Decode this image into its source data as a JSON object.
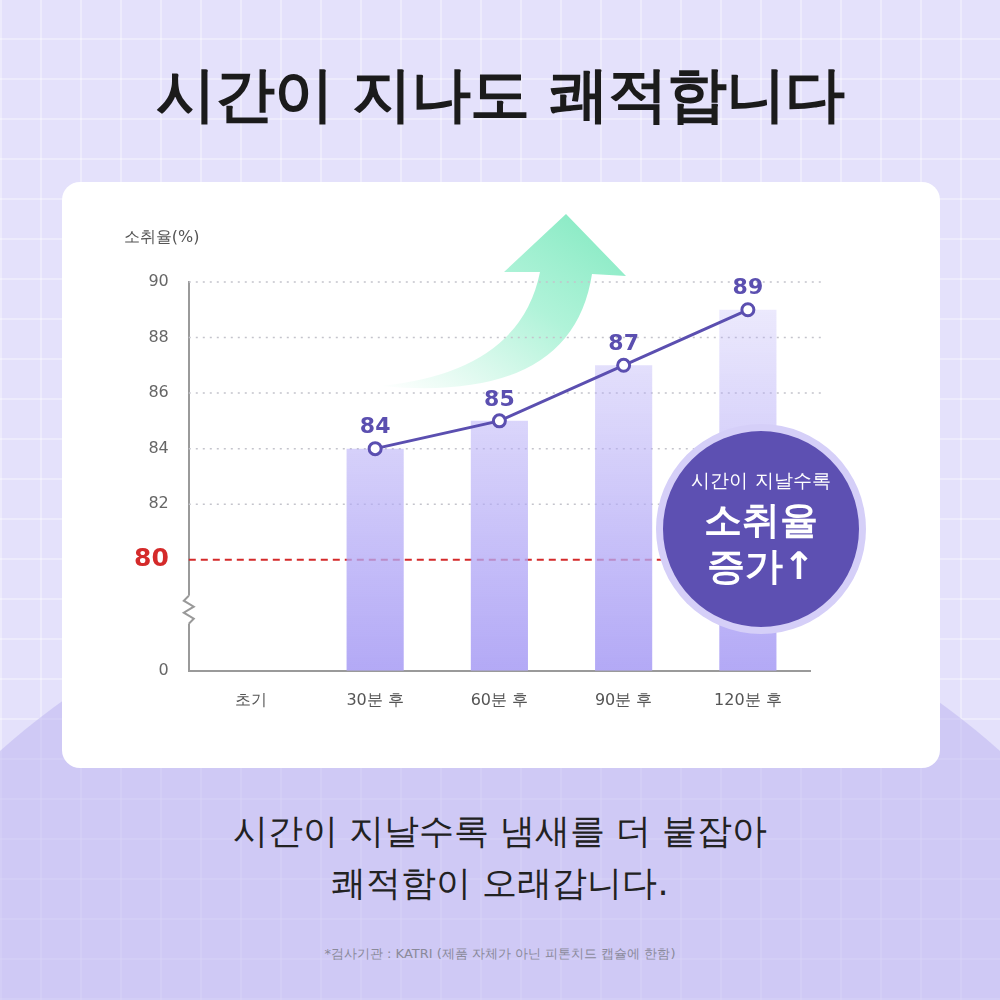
{
  "chart_data": {
    "type": "bar",
    "title": "시간이 지나도 쾌적합니다",
    "y_label": "소취율(%)",
    "categories": [
      "초기",
      "30분 후",
      "60분 후",
      "90분 후",
      "120분 후"
    ],
    "series": [
      {
        "type": "bar",
        "color": "#b3a9f6",
        "values": [
          null,
          84,
          85,
          87,
          89
        ]
      },
      {
        "type": "line",
        "color": "#5b4fb0",
        "marker": "circle",
        "values": [
          null,
          84,
          85,
          87,
          89
        ]
      }
    ],
    "ylim": [
      0,
      90
    ],
    "yticks": [
      0,
      80,
      82,
      84,
      86,
      88,
      90
    ],
    "grid": true,
    "data_labels": true,
    "annotation": [
      "시간이 지날수록",
      "소취율",
      "증가↑"
    ]
  },
  "caption": [
    "시간이 지날수록 냄새를 더 붙잡아",
    "쾌적함이 오래갑니다."
  ],
  "footnote": "*검사기관 : KATRI (제품 자체가 아닌 피톤치드 캡슐에 한함)"
}
